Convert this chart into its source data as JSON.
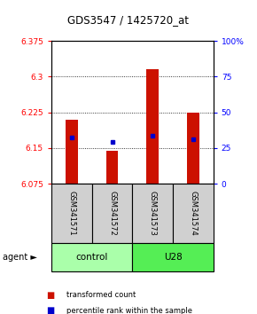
{
  "title": "GDS3547 / 1425720_at",
  "samples": [
    "GSM341571",
    "GSM341572",
    "GSM341573",
    "GSM341574"
  ],
  "bar_values": [
    6.21,
    6.145,
    6.315,
    6.225
  ],
  "percentile_values": [
    6.172,
    6.162,
    6.175,
    6.168
  ],
  "ymin": 6.075,
  "ymax": 6.375,
  "yticks": [
    6.075,
    6.15,
    6.225,
    6.3,
    6.375
  ],
  "ytick_labels": [
    "6.075",
    "6.15",
    "6.225",
    "6.3",
    "6.375"
  ],
  "right_yticks": [
    0,
    25,
    50,
    75,
    100
  ],
  "right_ytick_labels": [
    "0",
    "25",
    "50",
    "75",
    "100%"
  ],
  "grid_lines": [
    6.15,
    6.225,
    6.3
  ],
  "bar_color": "#cc1100",
  "percentile_color": "#0000cc",
  "control_color": "#aaffaa",
  "u28_color": "#55ee55",
  "sample_box_color": "#d0d0d0",
  "legend_items": [
    "transformed count",
    "percentile rank within the sample"
  ],
  "agent_label": "agent ►",
  "group_labels": [
    "control",
    "U28"
  ]
}
